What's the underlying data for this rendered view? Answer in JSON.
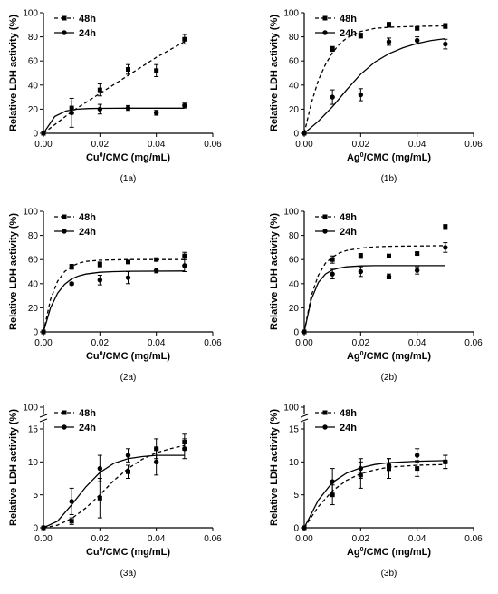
{
  "chart_data": [
    {
      "id": "1a",
      "caption": "(1a)",
      "type": "scatter",
      "xlabel_base": "Cu",
      "xlabel_sup": "0",
      "xlabel_rest": "/CMC (mg/mL)",
      "ylabel": "Relative LDH activity (%)",
      "xlim": [
        0,
        0.06
      ],
      "ylim": [
        0,
        100
      ],
      "xticks": [
        "0.00",
        "0.02",
        "0.04",
        "0.06"
      ],
      "xtick_values": [
        0,
        0.02,
        0.04,
        0.06
      ],
      "yticks": [
        "0",
        "20",
        "40",
        "60",
        "80",
        "100"
      ],
      "ytick_values": [
        0,
        20,
        40,
        60,
        80,
        100
      ],
      "axis_break": false,
      "series": [
        {
          "name": "48h",
          "marker": "square",
          "line": "dashed",
          "x": [
            0,
            0.01,
            0.02,
            0.03,
            0.04,
            0.05
          ],
          "y": [
            0,
            21,
            36,
            53,
            52,
            78
          ],
          "err": [
            0,
            5,
            5,
            4,
            5,
            4
          ],
          "fit_x": [
            0,
            0.01,
            0.02,
            0.03,
            0.04,
            0.05
          ],
          "fit_y": [
            0,
            18,
            33,
            48,
            63,
            76
          ]
        },
        {
          "name": "24h",
          "marker": "circle",
          "line": "solid",
          "x": [
            0,
            0.01,
            0.02,
            0.03,
            0.04,
            0.05
          ],
          "y": [
            0,
            17,
            20,
            21,
            17,
            23
          ],
          "err": [
            0,
            12,
            4,
            2,
            2,
            2
          ],
          "fit_x": [
            0,
            0.004,
            0.008,
            0.012,
            0.016,
            0.02,
            0.03,
            0.05
          ],
          "fit_y": [
            0,
            14,
            18.5,
            20,
            20.5,
            20.7,
            20.8,
            20.8
          ]
        }
      ]
    },
    {
      "id": "1b",
      "caption": "(1b)",
      "type": "scatter",
      "xlabel_base": "Ag",
      "xlabel_sup": "0",
      "xlabel_rest": "/CMC (mg/mL)",
      "ylabel": "Relative LDH activity (%)",
      "xlim": [
        0,
        0.06
      ],
      "ylim": [
        0,
        100
      ],
      "xticks": [
        "0.00",
        "0.02",
        "0.04",
        "0.06"
      ],
      "xtick_values": [
        0,
        0.02,
        0.04,
        0.06
      ],
      "yticks": [
        "0",
        "20",
        "40",
        "60",
        "80",
        "100"
      ],
      "ytick_values": [
        0,
        20,
        40,
        60,
        80,
        100
      ],
      "axis_break": false,
      "series": [
        {
          "name": "48h",
          "marker": "square",
          "line": "dashed",
          "x": [
            0,
            0.01,
            0.02,
            0.03,
            0.04,
            0.05
          ],
          "y": [
            0,
            70,
            81,
            90,
            87,
            89
          ],
          "err": [
            0,
            2,
            2,
            2,
            1,
            2
          ],
          "fit_x": [
            0,
            0.0025,
            0.005,
            0.0075,
            0.01,
            0.0125,
            0.015,
            0.02,
            0.025,
            0.03,
            0.04,
            0.05
          ],
          "fit_y": [
            0,
            25,
            44,
            57,
            67,
            74,
            79,
            84.5,
            87,
            88,
            88.7,
            89
          ]
        },
        {
          "name": "24h",
          "marker": "circle",
          "line": "solid",
          "x": [
            0,
            0.01,
            0.02,
            0.03,
            0.04,
            0.05
          ],
          "y": [
            0,
            30,
            32,
            76,
            77,
            74
          ],
          "err": [
            0,
            6,
            5,
            3,
            3,
            4
          ],
          "fit_x": [
            0,
            0.005,
            0.01,
            0.015,
            0.02,
            0.025,
            0.03,
            0.035,
            0.04,
            0.045,
            0.05
          ],
          "fit_y": [
            0,
            10,
            22,
            36,
            49,
            59,
            66,
            71,
            74.5,
            77,
            78.5
          ]
        }
      ]
    },
    {
      "id": "2a",
      "caption": "(2a)",
      "type": "scatter",
      "xlabel_base": "Cu",
      "xlabel_sup": "0",
      "xlabel_rest": "/CMC (mg/mL)",
      "ylabel": "Relative LDH activity (%)",
      "xlim": [
        0,
        0.06
      ],
      "ylim": [
        0,
        100
      ],
      "xticks": [
        "0.00",
        "0.02",
        "0.04",
        "0.06"
      ],
      "xtick_values": [
        0,
        0.02,
        0.04,
        0.06
      ],
      "yticks": [
        "0",
        "20",
        "40",
        "60",
        "80",
        "100"
      ],
      "ytick_values": [
        0,
        20,
        40,
        60,
        80,
        100
      ],
      "axis_break": false,
      "series": [
        {
          "name": "48h",
          "marker": "square",
          "line": "dashed",
          "x": [
            0,
            0.01,
            0.02,
            0.03,
            0.04,
            0.05
          ],
          "y": [
            0,
            54,
            56,
            58,
            60,
            63
          ],
          "err": [
            0,
            2,
            2,
            1,
            1,
            3
          ],
          "fit_x": [
            0,
            0.0025,
            0.005,
            0.0075,
            0.01,
            0.0125,
            0.015,
            0.02,
            0.03,
            0.05
          ],
          "fit_y": [
            0,
            27,
            42,
            50,
            54.5,
            57,
            58.5,
            59.5,
            60,
            60
          ]
        },
        {
          "name": "24h",
          "marker": "circle",
          "line": "solid",
          "x": [
            0,
            0.01,
            0.02,
            0.03,
            0.04,
            0.05
          ],
          "y": [
            0,
            40,
            43,
            45,
            51,
            55
          ],
          "err": [
            0,
            1,
            4,
            5,
            2,
            5
          ],
          "fit_x": [
            0,
            0.0025,
            0.005,
            0.0075,
            0.01,
            0.0125,
            0.015,
            0.02,
            0.025,
            0.03,
            0.05
          ],
          "fit_y": [
            0,
            20,
            32,
            39.5,
            44,
            46.5,
            48,
            49.5,
            50,
            50.3,
            50.5
          ]
        }
      ]
    },
    {
      "id": "2b",
      "caption": "(2b)",
      "type": "scatter",
      "xlabel_base": "Ag",
      "xlabel_sup": "0",
      "xlabel_rest": "/CMC (mg/mL)",
      "ylabel": "Relative LDH activity (%)",
      "xlim": [
        0,
        0.06
      ],
      "ylim": [
        0,
        100
      ],
      "xticks": [
        "0.00",
        "0.02",
        "0.04",
        "0.06"
      ],
      "xtick_values": [
        0,
        0.02,
        0.04,
        0.06
      ],
      "yticks": [
        "0",
        "20",
        "40",
        "60",
        "80",
        "100"
      ],
      "ytick_values": [
        0,
        20,
        40,
        60,
        80,
        100
      ],
      "axis_break": false,
      "series": [
        {
          "name": "48h",
          "marker": "square",
          "line": "dashed",
          "x": [
            0,
            0.01,
            0.02,
            0.03,
            0.04,
            0.05
          ],
          "y": [
            0,
            60,
            63,
            63,
            65,
            87
          ],
          "err": [
            0,
            3,
            2,
            1,
            1,
            2
          ],
          "fit_x": [
            0,
            0.0025,
            0.005,
            0.0075,
            0.01,
            0.0125,
            0.015,
            0.02,
            0.025,
            0.03,
            0.05
          ],
          "fit_y": [
            0,
            30,
            47,
            57,
            62,
            65.5,
            67.5,
            69.5,
            70.5,
            71,
            71.5
          ]
        },
        {
          "name": "24h",
          "marker": "circle",
          "line": "solid",
          "x": [
            0,
            0.01,
            0.02,
            0.03,
            0.04,
            0.05
          ],
          "y": [
            0,
            48,
            50,
            46,
            51,
            70
          ],
          "err": [
            0,
            4,
            4,
            2,
            3,
            4
          ],
          "fit_x": [
            0,
            0.0025,
            0.005,
            0.0075,
            0.01,
            0.0125,
            0.015,
            0.02,
            0.025,
            0.03,
            0.05
          ],
          "fit_y": [
            0,
            27,
            41,
            48,
            51.5,
            53,
            54,
            54.7,
            55,
            55,
            55
          ]
        }
      ]
    },
    {
      "id": "3a",
      "caption": "(3a)",
      "type": "scatter",
      "xlabel_base": "Cu",
      "xlabel_sup": "0",
      "xlabel_rest": "/CMC (mg/mL)",
      "ylabel": "Relative LDH activity (%)",
      "xlim": [
        0,
        0.06
      ],
      "ylim": [
        0,
        15
      ],
      "xticks": [
        "0.00",
        "0.02",
        "0.04",
        "0.06"
      ],
      "xtick_values": [
        0,
        0.02,
        0.04,
        0.06
      ],
      "yticks": [
        "0",
        "5",
        "10",
        "15",
        "100"
      ],
      "ytick_values": [
        0,
        5,
        10,
        15
      ],
      "axis_break": true,
      "series": [
        {
          "name": "48h",
          "marker": "square",
          "line": "dashed",
          "x": [
            0,
            0.01,
            0.02,
            0.03,
            0.04,
            0.05
          ],
          "y": [
            0,
            1,
            4.5,
            8.5,
            12,
            13
          ],
          "err": [
            0,
            0.5,
            3,
            1,
            1.5,
            1.2
          ],
          "fit_x": [
            0,
            0.005,
            0.01,
            0.015,
            0.02,
            0.025,
            0.03,
            0.035,
            0.04,
            0.045,
            0.05
          ],
          "fit_y": [
            0,
            0.4,
            1.4,
            3,
            5,
            7.2,
            9,
            10.4,
            11.4,
            12,
            12.5
          ]
        },
        {
          "name": "24h",
          "marker": "circle",
          "line": "solid",
          "x": [
            0,
            0.01,
            0.02,
            0.03,
            0.04,
            0.05
          ],
          "y": [
            0,
            4,
            9,
            11,
            10,
            12
          ],
          "err": [
            0,
            2,
            2,
            1,
            2,
            1.5
          ],
          "fit_x": [
            0,
            0.005,
            0.01,
            0.015,
            0.02,
            0.025,
            0.03,
            0.035,
            0.04,
            0.05
          ],
          "fit_y": [
            0,
            1,
            3.5,
            6.2,
            8.4,
            9.8,
            10.5,
            10.8,
            11,
            11
          ]
        }
      ]
    },
    {
      "id": "3b",
      "caption": "(3b)",
      "type": "scatter",
      "xlabel_base": "Ag",
      "xlabel_sup": "0",
      "xlabel_rest": "/CMC (mg/mL)",
      "ylabel": "Relative LDH activity (%)",
      "xlim": [
        0,
        0.06
      ],
      "ylim": [
        0,
        15
      ],
      "xticks": [
        "0.00",
        "0.02",
        "0.04",
        "0.06"
      ],
      "xtick_values": [
        0,
        0.02,
        0.04,
        0.06
      ],
      "yticks": [
        "0",
        "5",
        "10",
        "15",
        "100"
      ],
      "ytick_values": [
        0,
        5,
        10,
        15
      ],
      "axis_break": true,
      "series": [
        {
          "name": "48h",
          "marker": "square",
          "line": "dashed",
          "x": [
            0,
            0.01,
            0.02,
            0.03,
            0.04,
            0.05
          ],
          "y": [
            0,
            5,
            8,
            9,
            9,
            10
          ],
          "err": [
            0,
            1.5,
            2,
            1.5,
            1.2,
            1
          ],
          "fit_x": [
            0,
            0.005,
            0.01,
            0.015,
            0.02,
            0.025,
            0.03,
            0.04,
            0.05
          ],
          "fit_y": [
            0,
            3.2,
            5.6,
            7.2,
            8.2,
            8.8,
            9.2,
            9.5,
            9.6
          ]
        },
        {
          "name": "24h",
          "marker": "circle",
          "line": "solid",
          "x": [
            0,
            0.01,
            0.02,
            0.03,
            0.04,
            0.05
          ],
          "y": [
            0,
            7,
            9,
            9.5,
            11,
            10
          ],
          "err": [
            0,
            2,
            1.5,
            1,
            1,
            1
          ],
          "fit_x": [
            0,
            0.005,
            0.01,
            0.015,
            0.02,
            0.025,
            0.03,
            0.04,
            0.05
          ],
          "fit_y": [
            0,
            4.2,
            6.9,
            8.3,
            9.1,
            9.6,
            9.9,
            10.1,
            10.2
          ]
        }
      ]
    }
  ]
}
